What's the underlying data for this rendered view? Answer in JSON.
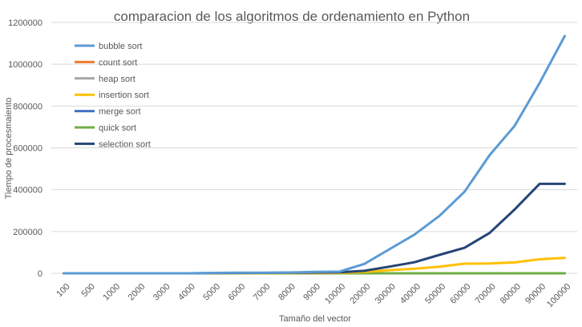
{
  "chart_data": {
    "type": "line",
    "title": "comparacion de los algoritmos de ordenamiento en Python",
    "xlabel": "Tamaño del vector",
    "ylabel": "Tiempo de procesmaiento",
    "ylim": [
      0,
      1200000
    ],
    "yticks": [
      "0",
      "200000",
      "400000",
      "600000",
      "800000",
      "1000000",
      "1200000"
    ],
    "grid": true,
    "legend_position": "top-left",
    "categories": [
      "100",
      "500",
      "1000",
      "2000",
      "3000",
      "4000",
      "5000",
      "6000",
      "7000",
      "8000",
      "9000",
      "10000",
      "20000",
      "30000",
      "40000",
      "50000",
      "60000",
      "70000",
      "80000",
      "90000",
      "100000"
    ],
    "series": [
      {
        "name": "bubble sort",
        "color": "#5b9bd5",
        "values": [
          0,
          0,
          0,
          0,
          0,
          0,
          2000,
          3000,
          3000,
          4000,
          7000,
          8000,
          45000,
          115000,
          185000,
          275000,
          390000,
          565000,
          705000,
          910000,
          1135000
        ]
      },
      {
        "name": "count sort",
        "color": "#ed7d31",
        "values": [
          0,
          0,
          0,
          0,
          0,
          0,
          0,
          0,
          0,
          0,
          0,
          0,
          0,
          0,
          0,
          0,
          0,
          0,
          0,
          0,
          0
        ]
      },
      {
        "name": "heap sort",
        "color": "#a5a5a5",
        "values": [
          0,
          0,
          0,
          0,
          0,
          0,
          0,
          0,
          0,
          0,
          0,
          0,
          0,
          0,
          0,
          0,
          0,
          0,
          0,
          0,
          0
        ]
      },
      {
        "name": "insertion sort",
        "color": "#ffc000",
        "values": [
          0,
          0,
          0,
          0,
          0,
          0,
          0,
          0,
          500,
          1000,
          1500,
          2000,
          7000,
          15000,
          22000,
          32000,
          46000,
          47000,
          52000,
          67000,
          74000
        ]
      },
      {
        "name": "merge sort",
        "color": "#4472c4",
        "values": [
          0,
          0,
          0,
          0,
          0,
          0,
          0,
          0,
          0,
          0,
          0,
          0,
          0,
          0,
          0,
          0,
          0,
          0,
          0,
          0,
          0
        ]
      },
      {
        "name": "quick sort",
        "color": "#70ad47",
        "values": [
          0,
          0,
          0,
          0,
          0,
          0,
          0,
          0,
          0,
          0,
          0,
          0,
          0,
          0,
          0,
          0,
          0,
          0,
          0,
          0,
          0
        ]
      },
      {
        "name": "selection sort",
        "color": "#264478",
        "values": [
          0,
          0,
          0,
          0,
          0,
          0,
          1000,
          1500,
          2000,
          3000,
          4000,
          5000,
          12000,
          32000,
          53000,
          88000,
          122000,
          193000,
          305000,
          428000,
          428000
        ]
      }
    ]
  }
}
